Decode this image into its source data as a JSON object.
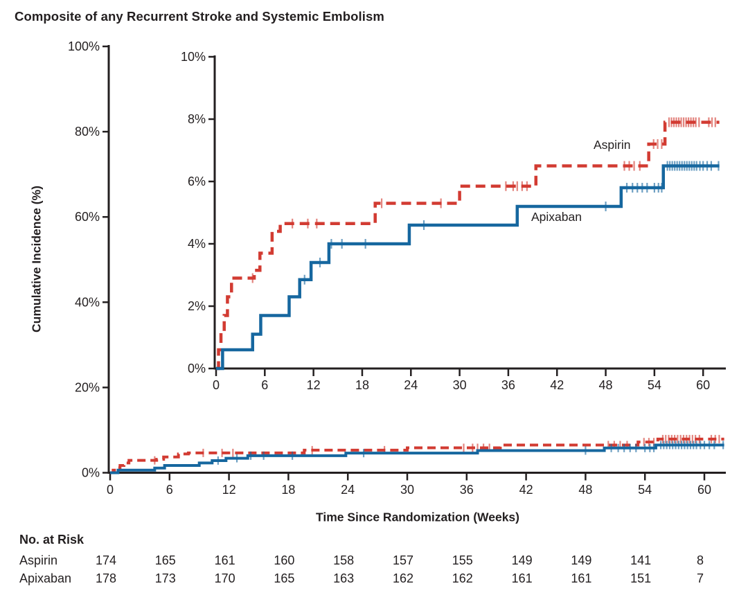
{
  "figure": {
    "title": "Composite of any Recurrent Stroke and Systemic Embolism",
    "x_axis_title": "Time Since Randomization (Weeks)",
    "y_axis_title": "Cumulative Incidence (%)",
    "risk_table": {
      "header": "No. at Risk",
      "weeks": [
        0,
        6,
        12,
        18,
        24,
        30,
        36,
        42,
        48,
        54,
        60
      ],
      "rows": [
        {
          "label": "Aspirin",
          "values": [
            174,
            165,
            161,
            160,
            158,
            157,
            155,
            149,
            149,
            141,
            8
          ]
        },
        {
          "label": "Apixaban",
          "values": [
            178,
            173,
            170,
            165,
            163,
            162,
            162,
            161,
            161,
            151,
            7
          ]
        }
      ]
    }
  },
  "colors": {
    "aspirin": "#d23b32",
    "apixaban": "#16679f",
    "axis": "#231f20",
    "background": "#ffffff"
  },
  "chart_data": {
    "type": "line",
    "subtype": "kaplan-meier cumulative incidence step curves with censoring ticks; large panel (0-100%) plus zoomed inset (0-10%)",
    "title": "Composite of any Recurrent Stroke and Systemic Embolism",
    "xlabel": "Time Since Randomization (Weeks)",
    "ylabel": "Cumulative Incidence (%)",
    "x_ticks": [
      0,
      6,
      12,
      18,
      24,
      30,
      36,
      42,
      48,
      54,
      60
    ],
    "xlim": [
      0,
      62
    ],
    "grid": false,
    "legend_position": "inline labels beside curves in inset",
    "panels": [
      {
        "id": "main",
        "ylim": [
          0,
          100
        ],
        "ytick_values": [
          0,
          20,
          40,
          60,
          80,
          100
        ],
        "ytick_labels": [
          "0%",
          "20%",
          "40%",
          "60%",
          "80%",
          "100%"
        ]
      },
      {
        "id": "inset",
        "ylim": [
          0,
          10
        ],
        "ytick_values": [
          0,
          2,
          4,
          6,
          8,
          10
        ],
        "ytick_labels": [
          "0%",
          "2%",
          "4%",
          "6%",
          "8%",
          "10%"
        ]
      }
    ],
    "series": [
      {
        "name": "Aspirin",
        "color": "#d23b32",
        "line_style": "dashed",
        "steps_week_pct": [
          [
            0,
            0
          ],
          [
            0.3,
            0.6
          ],
          [
            0.6,
            1.15
          ],
          [
            1.0,
            1.7
          ],
          [
            1.4,
            2.3
          ],
          [
            1.9,
            2.9
          ],
          [
            4.7,
            3.15
          ],
          [
            5.4,
            3.7
          ],
          [
            6.9,
            4.4
          ],
          [
            7.9,
            4.65
          ],
          [
            19.6,
            5.3
          ],
          [
            30.0,
            5.85
          ],
          [
            39.4,
            6.5
          ],
          [
            53.3,
            7.2
          ],
          [
            55.3,
            7.9
          ],
          [
            62,
            7.9
          ]
        ],
        "censor_weeks": [
          4.5,
          9.4,
          11.3,
          12.4,
          20.4,
          27.7,
          35.7,
          36.6,
          37.1,
          37.7,
          38.3,
          50.3,
          50.9,
          51.5,
          52.2,
          53.9,
          54.4,
          54.9,
          55.8,
          56.1,
          56.4,
          56.7,
          57.0,
          57.3,
          57.6,
          57.9,
          58.2,
          58.5,
          58.8,
          59.1,
          59.5,
          60.7,
          61.1,
          61.5
        ]
      },
      {
        "name": "Apixaban",
        "color": "#16679f",
        "line_style": "solid",
        "steps_week_pct": [
          [
            0,
            0
          ],
          [
            0.8,
            0.6
          ],
          [
            4.5,
            1.1
          ],
          [
            5.5,
            1.7
          ],
          [
            9.0,
            2.3
          ],
          [
            10.3,
            2.85
          ],
          [
            11.7,
            3.4
          ],
          [
            13.9,
            4.0
          ],
          [
            23.8,
            4.6
          ],
          [
            37.1,
            5.2
          ],
          [
            49.9,
            5.8
          ],
          [
            55.1,
            6.5
          ],
          [
            62,
            6.5
          ]
        ],
        "censor_weeks": [
          10.9,
          12.8,
          14.2,
          15.5,
          18.4,
          25.6,
          48.0,
          50.6,
          51.3,
          51.9,
          52.5,
          53.1,
          54.0,
          54.5,
          54.9,
          55.6,
          55.9,
          56.2,
          56.5,
          56.8,
          57.1,
          57.4,
          57.7,
          58.0,
          58.3,
          58.6,
          58.9,
          59.2,
          59.6,
          60.0,
          60.5,
          61.0,
          61.9
        ]
      }
    ]
  }
}
